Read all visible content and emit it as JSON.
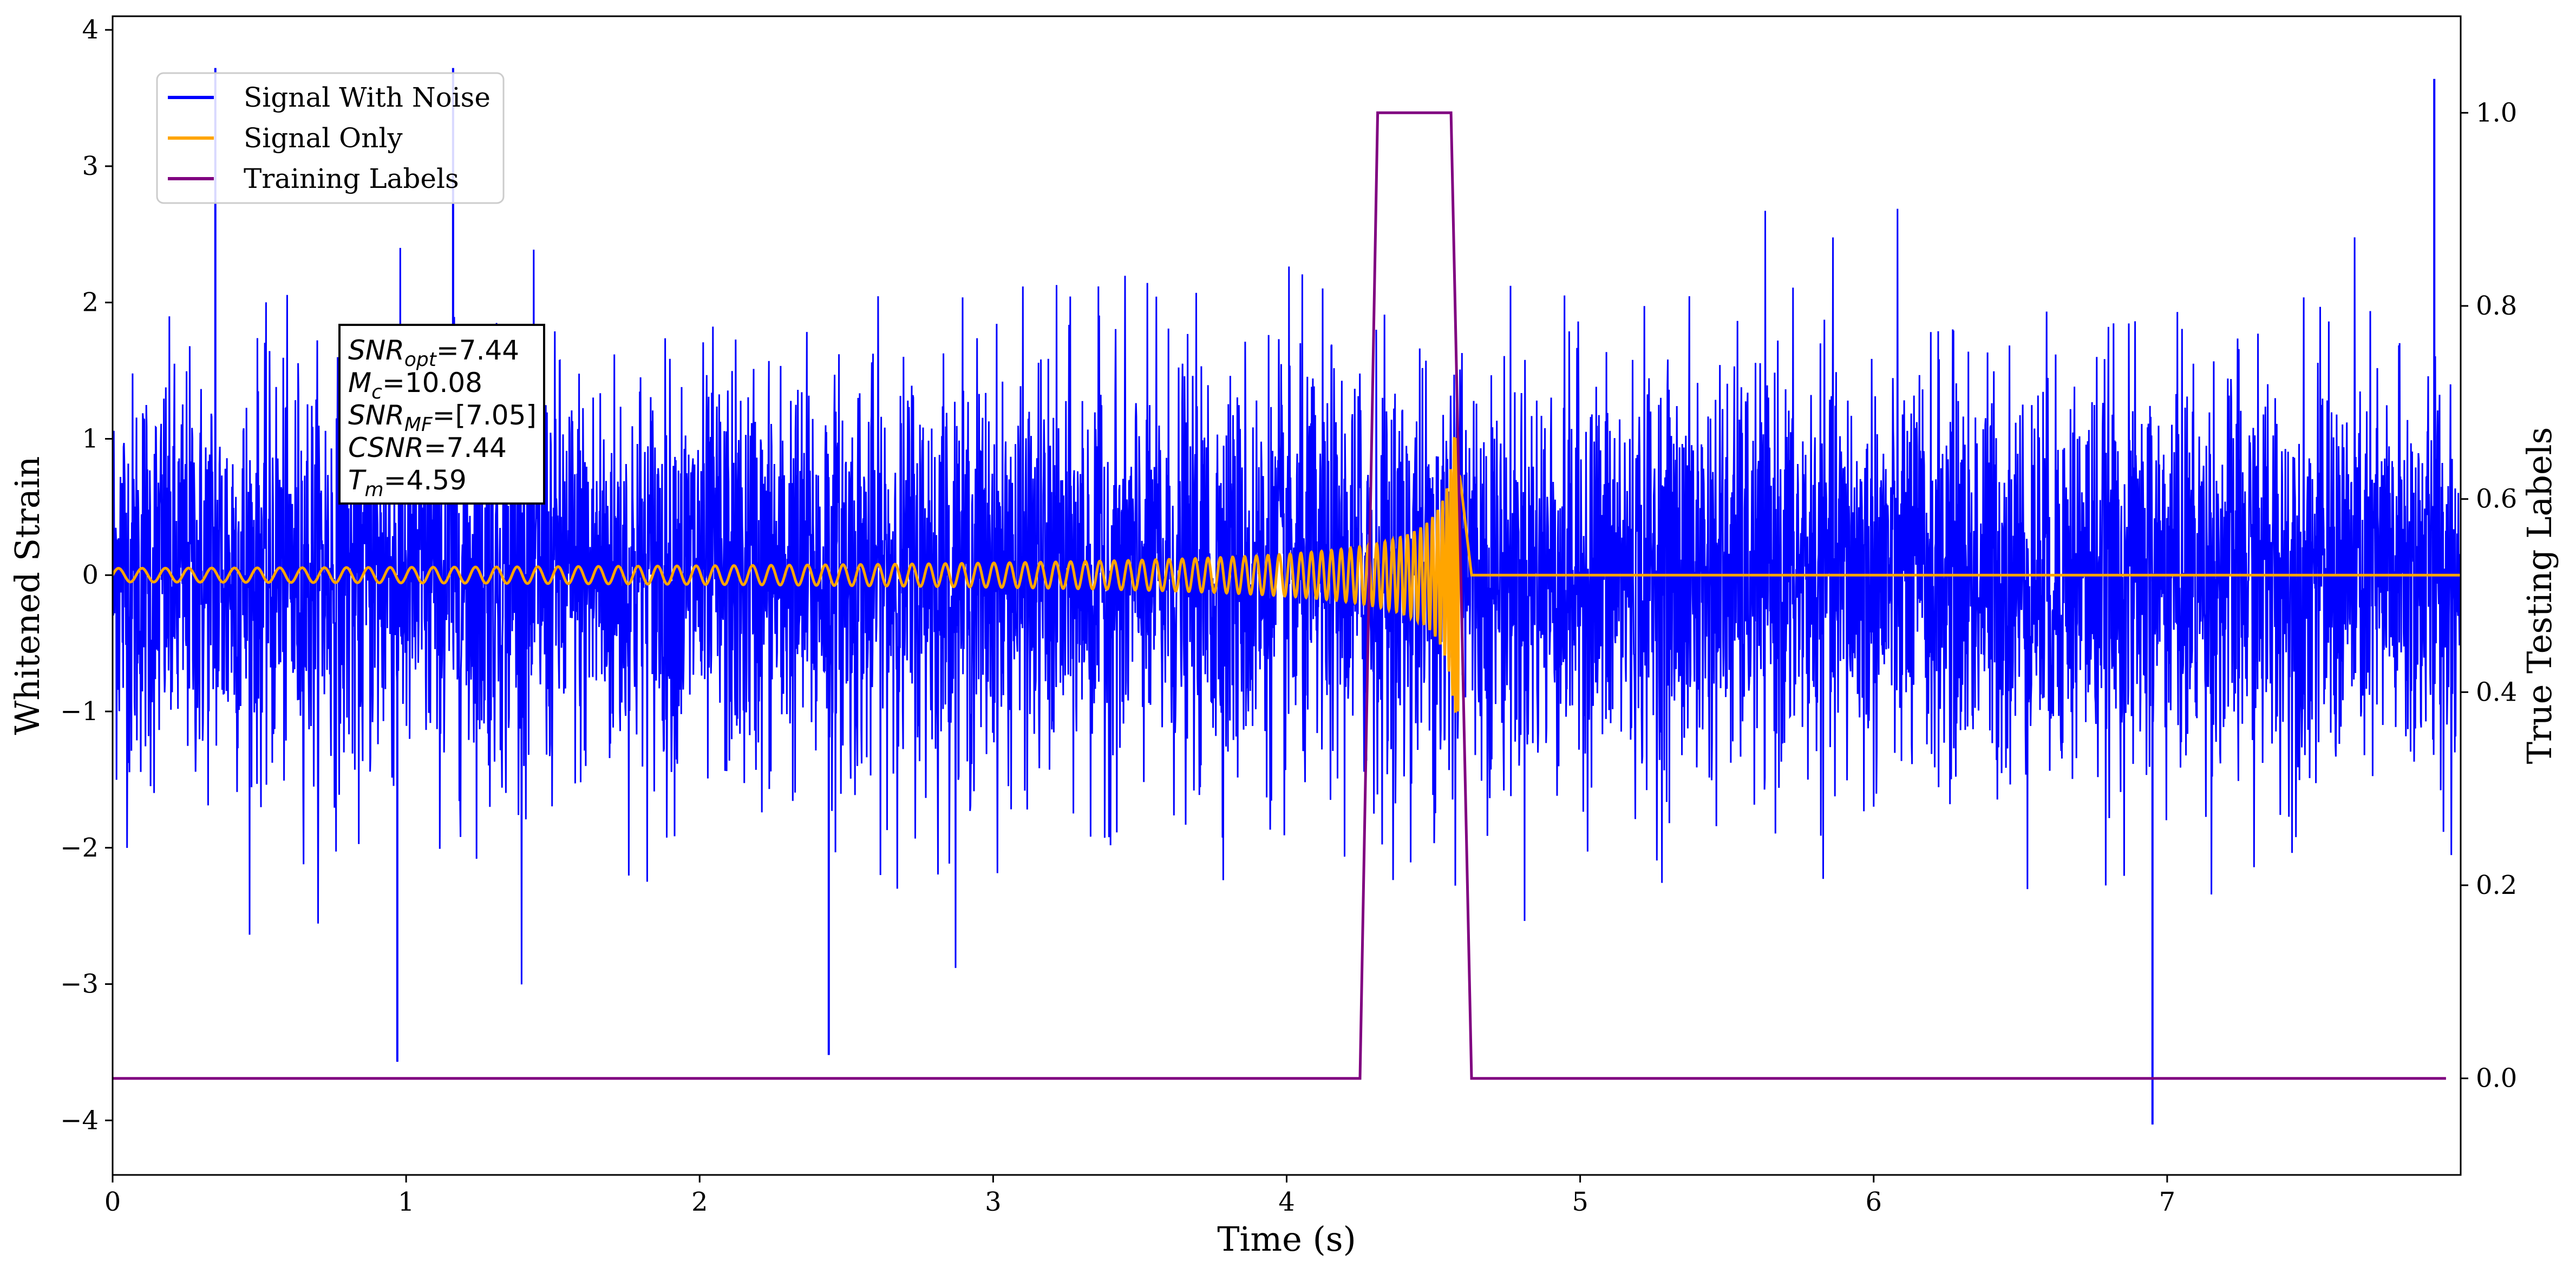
{
  "chart_data": {
    "type": "line",
    "xlabel": "Time (s)",
    "ylabel": "Whitened Strain",
    "y2label": "True Testing Labels",
    "xlim": [
      0,
      8.0
    ],
    "ylim": [
      -4.4,
      4.1
    ],
    "y2lim": [
      -0.1,
      1.1
    ],
    "xticks": [
      0,
      1,
      2,
      3,
      4,
      5,
      6,
      7
    ],
    "xtick_labels": [
      "0",
      "1",
      "2",
      "3",
      "4",
      "5",
      "6",
      "7"
    ],
    "yticks": [
      -4,
      -3,
      -2,
      -1,
      0,
      1,
      2,
      3,
      4
    ],
    "ytick_labels": [
      "−4",
      "−3",
      "−2",
      "−1",
      "0",
      "1",
      "2",
      "3",
      "4"
    ],
    "y2ticks": [
      0.0,
      0.2,
      0.4,
      0.6,
      0.8,
      1.0
    ],
    "y2tick_labels": [
      "0.0",
      "0.2",
      "0.4",
      "0.6",
      "0.8",
      "1.0"
    ],
    "grid": false,
    "legend_position": "top-left",
    "series": [
      {
        "name": "Signal With Noise",
        "color": "#0000ff",
        "axis": "left",
        "description_kind": "noise",
        "noise_sigma": 0.75,
        "x_range": [
          0,
          8.0
        ],
        "spikes": [
          {
            "x": 0.35,
            "y": 3.72
          },
          {
            "x": 1.16,
            "y": 3.72
          },
          {
            "x": 7.91,
            "y": 3.64
          },
          {
            "x": 0.97,
            "y": -3.57
          },
          {
            "x": 2.44,
            "y": -3.52
          },
          {
            "x": 6.95,
            "y": -4.03
          }
        ]
      },
      {
        "name": "Signal Only",
        "color": "#ffa500",
        "axis": "left",
        "description_kind": "chirp",
        "merger_time": 4.59,
        "start_amplitude": 0.05,
        "peak_amplitude": 1.05,
        "end_time": 4.63,
        "x_range": [
          0,
          8.0
        ]
      },
      {
        "name": "Training Labels",
        "color": "#800080",
        "axis": "right",
        "x": [
          0,
          4.25,
          4.31,
          4.56,
          4.63,
          7.95
        ],
        "y": [
          0,
          0,
          1,
          1,
          0,
          0
        ]
      }
    ],
    "annotation": {
      "lines": [
        {
          "sym": "SNR",
          "sub": "opt",
          "val": "=7.44"
        },
        {
          "sym": "M",
          "sub": "c",
          "val": "=10.08"
        },
        {
          "sym": "SNR",
          "sub": "MF",
          "val": "=[7.05]"
        },
        {
          "sym": "CSNR",
          "sub": "",
          "val": "=7.44"
        },
        {
          "sym": "T",
          "sub": "m",
          "val": "=4.59"
        }
      ]
    }
  }
}
